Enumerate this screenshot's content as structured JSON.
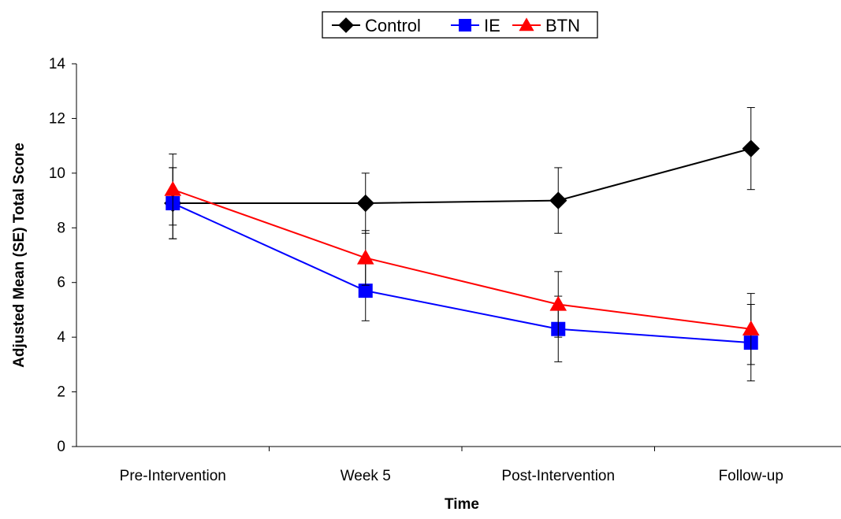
{
  "chart_data": {
    "type": "line",
    "title": "",
    "xlabel": "Time",
    "ylabel": "Adjusted Mean (SE) Total Score",
    "categories": [
      "Pre-Intervention",
      "Week 5",
      "Post-Intervention",
      "Follow-up"
    ],
    "ylim": [
      0,
      14
    ],
    "yticks": [
      0,
      2,
      4,
      6,
      8,
      10,
      12,
      14
    ],
    "grid": false,
    "legend_position": "top-center",
    "series": [
      {
        "name": "Control",
        "color": "#000000",
        "marker": "diamond",
        "values": [
          8.9,
          8.9,
          9.0,
          10.9
        ],
        "error": [
          1.3,
          1.1,
          1.2,
          1.5
        ]
      },
      {
        "name": "IE",
        "color": "#0000ff",
        "marker": "square",
        "values": [
          8.9,
          5.7,
          4.3,
          3.8
        ],
        "error": [
          1.3,
          1.1,
          1.2,
          1.4
        ]
      },
      {
        "name": "BTN",
        "color": "#ff0000",
        "marker": "triangle",
        "values": [
          9.4,
          6.9,
          5.2,
          4.3
        ],
        "error": [
          1.3,
          1.0,
          1.2,
          1.3
        ]
      }
    ]
  }
}
